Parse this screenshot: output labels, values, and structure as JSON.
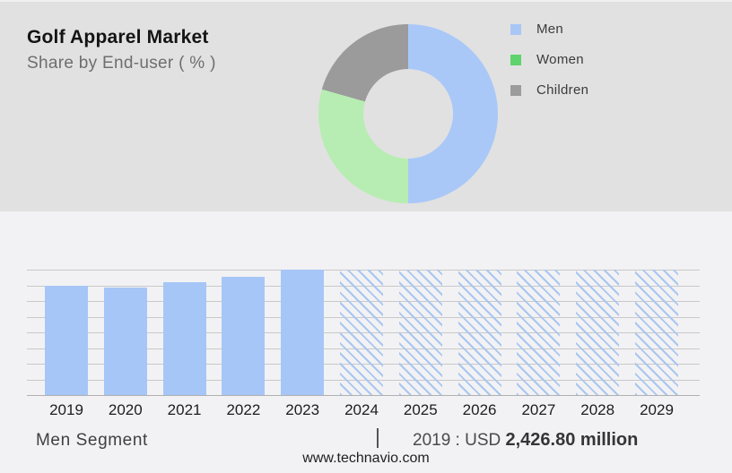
{
  "header": {
    "title": "Golf Apparel Market",
    "subtitle": "Share by End-user ( % )"
  },
  "chart_data": [
    {
      "type": "pie",
      "subtype": "donut",
      "title": "Share by End-user ( % )",
      "labels": [
        "Men",
        "Women",
        "Children"
      ],
      "values_pct": [
        50,
        29.4,
        20.6
      ],
      "colors": [
        "#a9c8f8",
        "#b7edb2",
        "#9b9b9b"
      ],
      "legend_position": "right",
      "legend_swatch_colors": [
        "#a9c7f5",
        "#5fd36d",
        "#9c9c9c"
      ],
      "start_angle_deg": 0,
      "direction": "clockwise-from-top"
    },
    {
      "type": "bar",
      "categories": [
        "2019",
        "2020",
        "2021",
        "2022",
        "2023",
        "2024",
        "2025",
        "2026",
        "2027",
        "2028",
        "2029"
      ],
      "values_usd_million": [
        2426.8,
        2390,
        2510,
        2640,
        2790,
        null,
        null,
        null,
        null,
        null,
        null
      ],
      "value_labels_shown": false,
      "known_value": "2019 : USD 2,426.80 million",
      "estimation_note": "2020-2023 estimated from bar heights; 2024-2029 are hatched full-height forecast placeholder bars with undisclosed values",
      "ylim": [
        0,
        2790
      ],
      "gridlines": 9,
      "grid_on": true,
      "bar_color": "#a6c6f7",
      "hatch_color": "#a9c6f0",
      "xlabel": "",
      "ylabel": ""
    }
  ],
  "footer": {
    "segment_label": "Men Segment",
    "separator": "|",
    "value_prefix": "2019 : USD ",
    "value_bold": "2,426.80 million",
    "website": "www.technavio.com"
  }
}
